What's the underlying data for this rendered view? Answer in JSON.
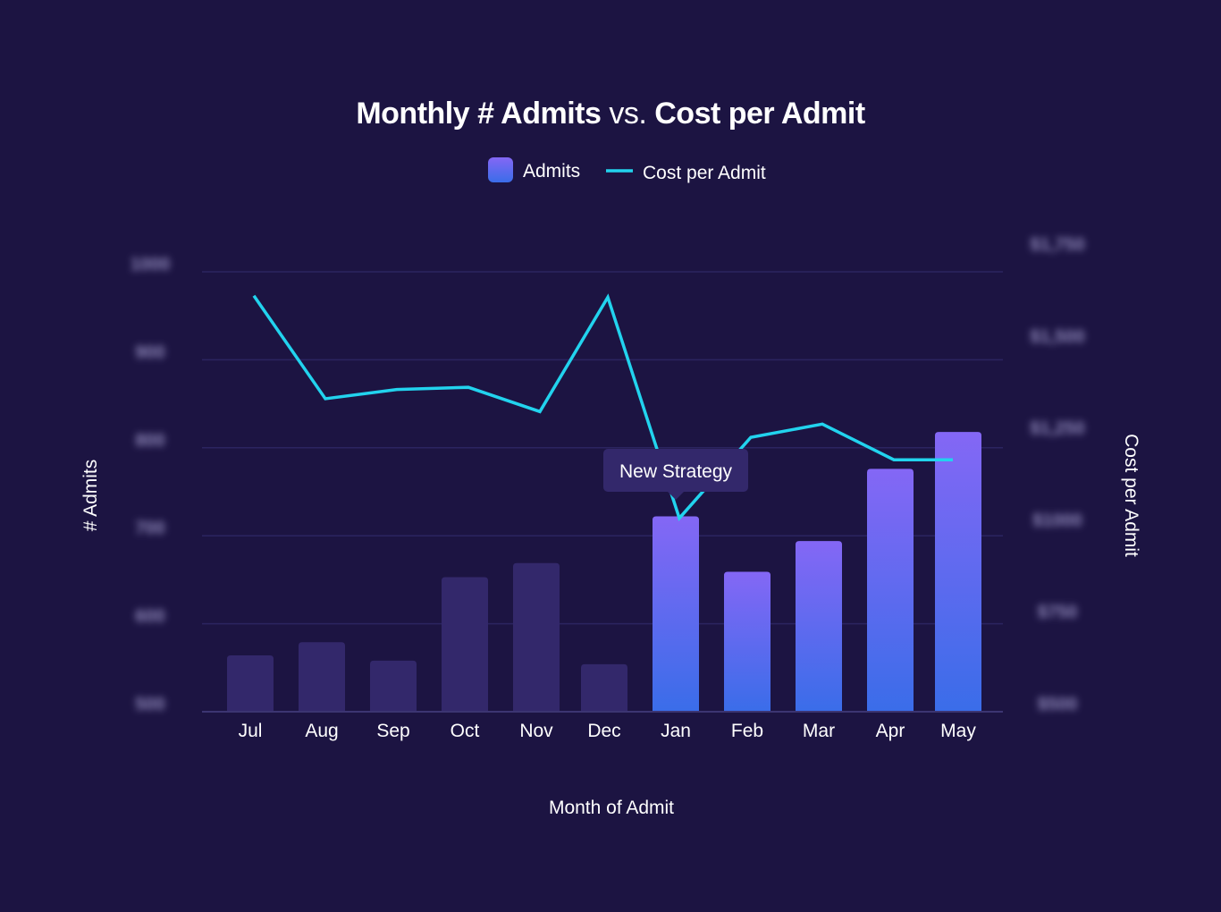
{
  "chart_data": {
    "type": "bar",
    "title_parts": [
      {
        "text": "Monthly # Admits",
        "weight": "bold"
      },
      {
        "text": " vs. ",
        "weight": "normal"
      },
      {
        "text": "Cost per Admit",
        "weight": "bold"
      }
    ],
    "xlabel": "Month of Admit",
    "ylabel": "# Admits",
    "y2label": "Cost per Admit",
    "categories": [
      "Jul",
      "Aug",
      "Sep",
      "Oct",
      "Nov",
      "Dec",
      "Jan",
      "Feb",
      "Mar",
      "Apr",
      "May"
    ],
    "legend_position": "top-center",
    "grid": true,
    "ylim": [
      500,
      1000
    ],
    "y_ticks": [
      "1000",
      "900",
      "800",
      "700",
      "600",
      "500"
    ],
    "y2lim": [
      500,
      1750
    ],
    "y2_ticks": [
      "$1,750",
      "$1,500",
      "$1,250",
      "$1000",
      "$750",
      "$500"
    ],
    "y_ticks_blurred": true,
    "series": [
      {
        "name": "Admits",
        "kind": "bar",
        "values": [
          564,
          579,
          558,
          653,
          669,
          554,
          722,
          659,
          694,
          776,
          818
        ],
        "highlight_from_index": 6,
        "color_muted": "#33286b",
        "color_top": "#8467f5",
        "color_bottom": "#3a6de9"
      },
      {
        "name": "Cost per Admit",
        "kind": "line",
        "axis": "y2",
        "values": [
          1607,
          1327,
          1352,
          1358,
          1292,
          1603,
          1002,
          1222,
          1258,
          1161,
          1161
        ],
        "color": "#22d3ee"
      }
    ],
    "annotation": {
      "text": "New Strategy",
      "category": "Jan",
      "bg_color": "#33286b"
    }
  }
}
